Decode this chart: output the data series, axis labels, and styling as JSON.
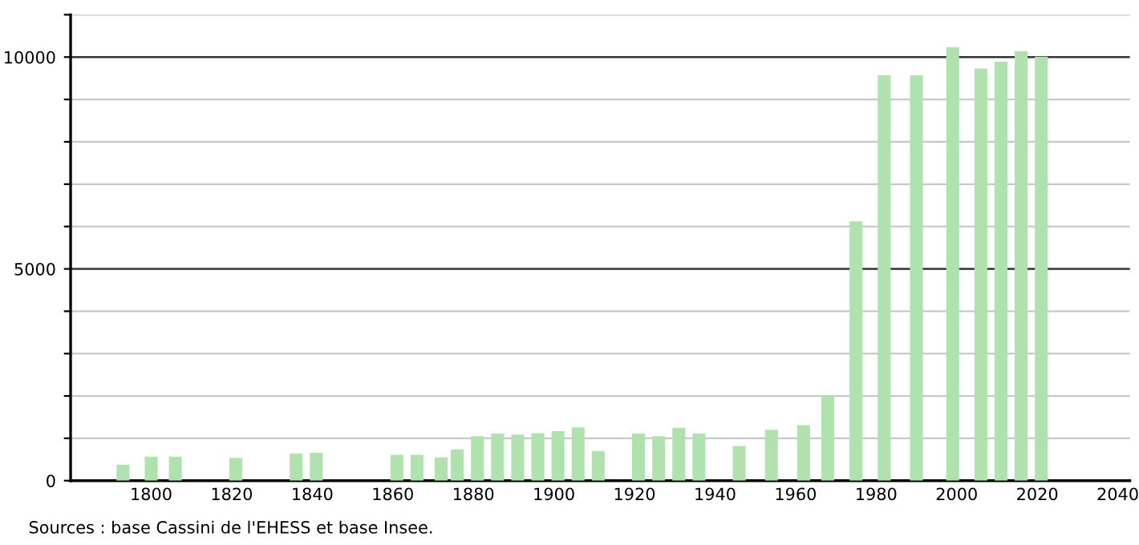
{
  "chart_data": {
    "type": "bar",
    "x": [
      1793,
      1800,
      1806,
      1821,
      1836,
      1841,
      1861,
      1866,
      1872,
      1876,
      1881,
      1886,
      1891,
      1896,
      1901,
      1906,
      1911,
      1921,
      1926,
      1931,
      1936,
      1946,
      1954,
      1962,
      1968,
      1975,
      1982,
      1990,
      1999,
      2006,
      2011,
      2016,
      2021
    ],
    "values": [
      380,
      570,
      570,
      540,
      640,
      660,
      610,
      610,
      550,
      740,
      1050,
      1110,
      1090,
      1120,
      1170,
      1260,
      700,
      1110,
      1050,
      1250,
      1110,
      820,
      1200,
      1310,
      2020,
      6120,
      9570,
      9570,
      10230,
      9730,
      9890,
      10140,
      10010
    ],
    "color": "#aee3ae",
    "xlim": [
      1780,
      2043
    ],
    "xticks": [
      1800,
      1820,
      1840,
      1860,
      1880,
      1900,
      1920,
      1940,
      1960,
      1980,
      2000,
      2020,
      2040
    ],
    "ylim": [
      0,
      11000
    ],
    "yticks": [
      0,
      {
        "value": 1000,
        "label": null
      },
      {
        "value": 2000,
        "label": null
      },
      {
        "value": 3000,
        "label": null
      },
      {
        "value": 4000,
        "label": null
      },
      5000,
      {
        "value": 6000,
        "label": null
      },
      {
        "value": 7000,
        "label": null
      },
      {
        "value": 8000,
        "label": null
      },
      {
        "value": 9000,
        "label": null
      },
      10000,
      {
        "value": 11000,
        "label": null
      }
    ],
    "grid": "y",
    "annotations": [
      "Sources : base Cassini de l'EHESS et base Insee."
    ]
  }
}
